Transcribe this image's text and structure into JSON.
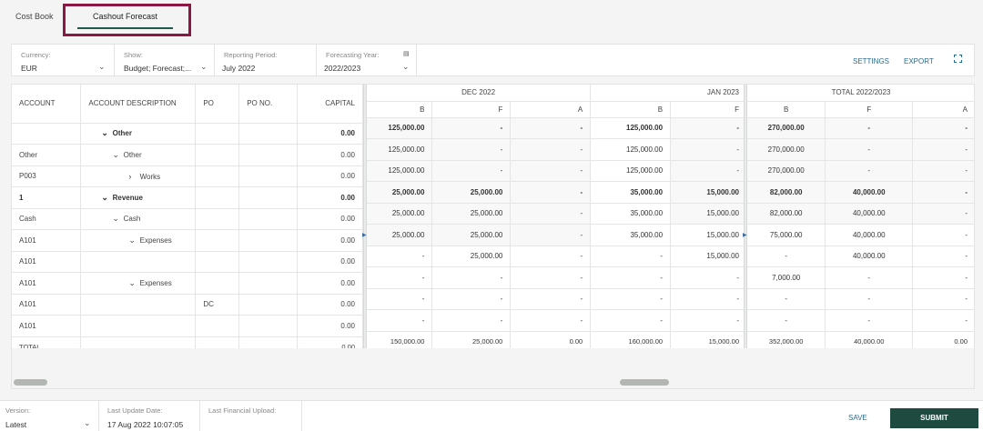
{
  "tabs": [
    {
      "label": "Cost Book"
    },
    {
      "label": "Cashout Forecast"
    }
  ],
  "filters": {
    "currency": {
      "label": "Currency:",
      "value": "EUR"
    },
    "show": {
      "label": "Show:",
      "value": "Budget; Forecast;..."
    },
    "reporting_period": {
      "label": "Reporting Period:",
      "value": "July 2022"
    },
    "forecasting_year": {
      "label": "Forecasting Year:",
      "value": "2022/2023"
    }
  },
  "toolbar": {
    "settings_label": "SETTINGS",
    "export_label": "EXPORT"
  },
  "grid": {
    "left_headers": {
      "account": "ACCOUNT",
      "account_description": "ACCOUNT DESCRIPTION",
      "po": "PO",
      "po_no": "PO NO.",
      "capital": "CAPITAL"
    },
    "group_dec": "DEC 2022",
    "group_jan": "JAN 2023",
    "group_total": "TOTAL 2022/2023",
    "sub_b": "B",
    "sub_f": "F",
    "sub_a": "A",
    "rows": [
      {
        "account": "",
        "desc_icon": "chevron-down-icon",
        "desc": "Other",
        "po": "",
        "capital": "0.00",
        "dec_b": "125,000.00",
        "dec_f": "-",
        "dec_a": "-",
        "jan_b": "125,000.00",
        "jan_f": "-",
        "tot_b": "270,000.00",
        "tot_f": "-",
        "tot_a": "-"
      },
      {
        "account": "Other",
        "desc_icon": "chevron-down-icon",
        "desc": "Other",
        "po": "",
        "capital": "0.00",
        "dec_b": "125,000.00",
        "dec_f": "-",
        "dec_a": "-",
        "jan_b": "125,000.00",
        "jan_f": "-",
        "tot_b": "270,000.00",
        "tot_f": "-",
        "tot_a": "-"
      },
      {
        "account": "P003",
        "desc_icon": "chevron-right-icon",
        "desc": "Works",
        "po": "",
        "capital": "0.00",
        "dec_b": "125,000.00",
        "dec_f": "-",
        "dec_a": "-",
        "jan_b": "125,000.00",
        "jan_f": "-",
        "tot_b": "270,000.00",
        "tot_f": "-",
        "tot_a": "-"
      },
      {
        "account": "1",
        "desc_icon": "chevron-down-icon",
        "desc": "Revenue",
        "po": "",
        "capital": "0.00",
        "dec_b": "25,000.00",
        "dec_f": "25,000.00",
        "dec_a": "-",
        "jan_b": "35,000.00",
        "jan_f": "15,000.00",
        "tot_b": "82,000.00",
        "tot_f": "40,000.00",
        "tot_a": "-"
      },
      {
        "account": "Cash",
        "desc_icon": "chevron-down-icon",
        "desc": "Cash",
        "po": "",
        "capital": "0.00",
        "dec_b": "25,000.00",
        "dec_f": "25,000.00",
        "dec_a": "-",
        "jan_b": "35,000.00",
        "jan_f": "15,000.00",
        "tot_b": "82,000.00",
        "tot_f": "40,000.00",
        "tot_a": "-"
      },
      {
        "account": "A101",
        "desc_icon": "chevron-down-icon",
        "desc": "Expenses",
        "po": "",
        "capital": "0.00",
        "dec_b": "25,000.00",
        "dec_f": "25,000.00",
        "dec_a": "-",
        "jan_b": "35,000.00",
        "jan_f": "15,000.00",
        "tot_b": "75,000.00",
        "tot_f": "40,000.00",
        "tot_a": "-"
      },
      {
        "account": "A101",
        "desc_icon": "",
        "desc": "",
        "po": "",
        "capital": "0.00",
        "dec_b": "-",
        "dec_f": "25,000.00",
        "dec_a": "-",
        "jan_b": "-",
        "jan_f": "15,000.00",
        "tot_b": "-",
        "tot_f": "40,000.00",
        "tot_a": "-"
      },
      {
        "account": "A101",
        "desc_icon": "chevron-down-icon",
        "desc": "Expenses",
        "po": "",
        "capital": "0.00",
        "dec_b": "-",
        "dec_f": "-",
        "dec_a": "-",
        "jan_b": "-",
        "jan_f": "-",
        "tot_b": "7,000.00",
        "tot_f": "-",
        "tot_a": "-"
      },
      {
        "account": "A101",
        "desc_icon": "",
        "desc": "",
        "po": "DC",
        "capital": "0.00",
        "dec_b": "-",
        "dec_f": "-",
        "dec_a": "-",
        "jan_b": "-",
        "jan_f": "-",
        "tot_b": "-",
        "tot_f": "-",
        "tot_a": "-"
      },
      {
        "account": "A101",
        "desc_icon": "",
        "desc": "",
        "po": "",
        "capital": "0.00",
        "dec_b": "-",
        "dec_f": "-",
        "dec_a": "-",
        "jan_b": "-",
        "jan_f": "-",
        "tot_b": "-",
        "tot_f": "-",
        "tot_a": "-"
      }
    ],
    "total": {
      "label": "TOTAL",
      "capital": "0.00",
      "dec_b": "150,000.00",
      "dec_f": "25,000.00",
      "dec_a": "0.00",
      "jan_b": "160,000.00",
      "jan_f": "15,000.00",
      "tot_b": "352,000.00",
      "tot_f": "40,000.00",
      "tot_a": "0.00"
    }
  },
  "footer": {
    "version": {
      "label": "Version:",
      "value": "Latest"
    },
    "last_update": {
      "label": "Last Update Date:",
      "value": "17 Aug 2022 10:07:05"
    },
    "last_financial_upload": {
      "label": "Last Financial Upload:",
      "value": ""
    },
    "save_label": "SAVE",
    "submit_label": "SUBMIT"
  },
  "colors": {
    "accent": "#1e5a4c",
    "highlight": "#8a1744",
    "link": "#2b6a8f"
  }
}
